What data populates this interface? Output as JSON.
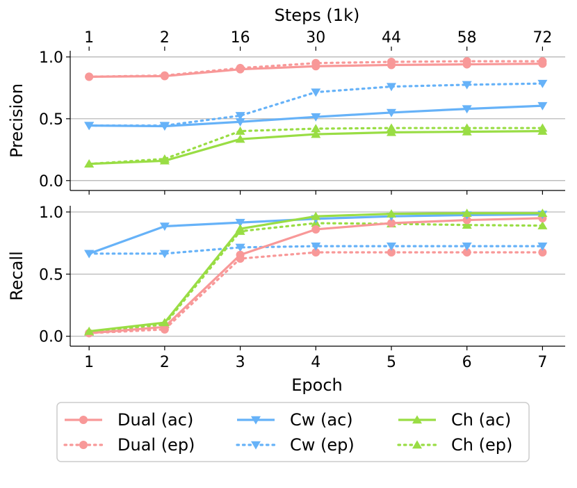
{
  "chart_data": {
    "type": "line",
    "x": [
      1,
      2,
      3,
      4,
      5,
      6,
      7
    ],
    "x_ticks": [
      "1",
      "2",
      "3",
      "4",
      "5",
      "6",
      "7"
    ],
    "xlabel": "Epoch",
    "top_axis": {
      "label": "Steps (1k)",
      "ticks": [
        "1",
        "2",
        "16",
        "30",
        "44",
        "58",
        "72"
      ]
    },
    "xlim": [
      0.75,
      7.3
    ],
    "panels": [
      {
        "key": "precision",
        "ylabel": "Precision",
        "ylim": [
          -0.08,
          1.05
        ],
        "yticks": [
          0.0,
          0.5,
          1.0
        ],
        "ytick_labels": [
          "0.0",
          "0.5",
          "1.0"
        ],
        "grid": true,
        "series": [
          {
            "name": "Dual (ac)",
            "values": [
              0.84,
              0.845,
              0.9,
              0.925,
              0.935,
              0.94,
              0.945
            ]
          },
          {
            "name": "Dual (ep)",
            "values": [
              0.84,
              0.85,
              0.91,
              0.95,
              0.96,
              0.965,
              0.965
            ]
          },
          {
            "name": "Cw (ac)",
            "values": [
              0.445,
              0.44,
              0.475,
              0.515,
              0.55,
              0.58,
              0.605
            ]
          },
          {
            "name": "Cw (ep)",
            "values": [
              0.445,
              0.445,
              0.525,
              0.715,
              0.76,
              0.775,
              0.785
            ]
          },
          {
            "name": "Ch (ac)",
            "values": [
              0.135,
              0.16,
              0.335,
              0.375,
              0.39,
              0.395,
              0.4
            ]
          },
          {
            "name": "Ch (ep)",
            "values": [
              0.135,
              0.175,
              0.4,
              0.42,
              0.425,
              0.425,
              0.425
            ]
          }
        ]
      },
      {
        "key": "recall",
        "ylabel": "Recall",
        "ylim": [
          -0.08,
          1.05
        ],
        "yticks": [
          0.0,
          0.5,
          1.0
        ],
        "ytick_labels": [
          "0.0",
          "0.5",
          "1.0"
        ],
        "grid": true,
        "series": [
          {
            "name": "Dual (ac)",
            "values": [
              0.025,
              0.075,
              0.655,
              0.86,
              0.91,
              0.935,
              0.95
            ]
          },
          {
            "name": "Dual (ep)",
            "values": [
              0.025,
              0.055,
              0.625,
              0.675,
              0.675,
              0.675,
              0.675
            ]
          },
          {
            "name": "Cw (ac)",
            "values": [
              0.665,
              0.885,
              0.915,
              0.945,
              0.965,
              0.975,
              0.98
            ]
          },
          {
            "name": "Cw (ep)",
            "values": [
              0.665,
              0.665,
              0.715,
              0.725,
              0.725,
              0.725,
              0.725
            ]
          },
          {
            "name": "Ch (ac)",
            "values": [
              0.04,
              0.11,
              0.865,
              0.965,
              0.985,
              0.99,
              0.99
            ]
          },
          {
            "name": "Ch (ep)",
            "values": [
              0.035,
              0.095,
              0.845,
              0.91,
              0.905,
              0.895,
              0.89
            ]
          }
        ]
      }
    ],
    "series_styles": [
      {
        "name": "Dual (ac)",
        "color": "#f89898",
        "dash": "solid",
        "marker": "circle"
      },
      {
        "name": "Dual (ep)",
        "color": "#f89898",
        "dash": "dotted",
        "marker": "circle"
      },
      {
        "name": "Cw (ac)",
        "color": "#66b2f8",
        "dash": "solid",
        "marker": "triangle-down"
      },
      {
        "name": "Cw (ep)",
        "color": "#66b2f8",
        "dash": "dotted",
        "marker": "triangle-down"
      },
      {
        "name": "Ch (ac)",
        "color": "#99dd44",
        "dash": "solid",
        "marker": "triangle-up"
      },
      {
        "name": "Ch (ep)",
        "color": "#99dd44",
        "dash": "dotted",
        "marker": "triangle-up"
      }
    ],
    "legend": {
      "placement": "bottom",
      "entries": [
        "Dual (ac)",
        "Cw (ac)",
        "Ch (ac)",
        "Dual (ep)",
        "Cw (ep)",
        "Ch (ep)"
      ]
    }
  }
}
